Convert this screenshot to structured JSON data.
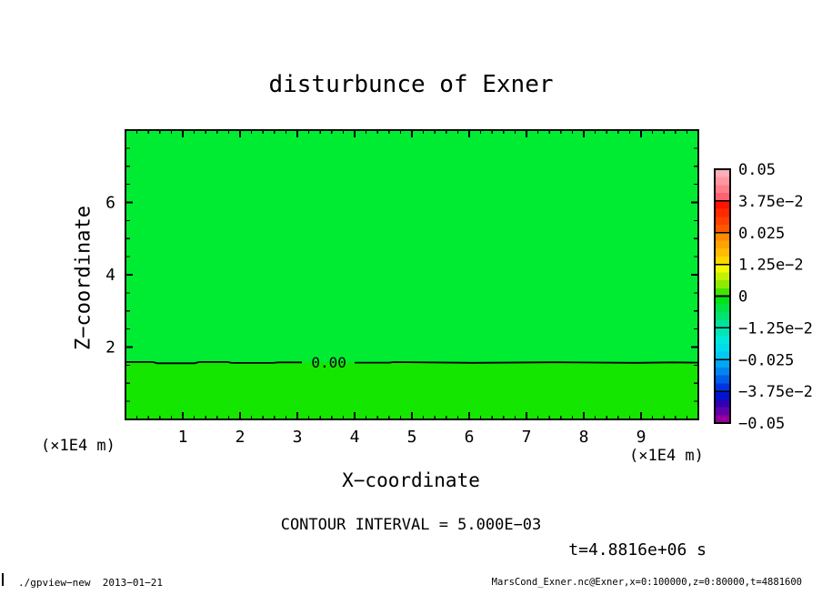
{
  "title": "disturbunce of Exner",
  "chart_data": {
    "type": "heatmap",
    "title": "disturbunce of Exner",
    "xlabel": "X−coordinate",
    "ylabel": "Z−coordinate",
    "x_units_label": "(×1E4 m)",
    "y_units_label": "(×1E4 m)",
    "xlim": [
      0,
      10
    ],
    "ylim": [
      0,
      8
    ],
    "x_major_ticks": [
      1,
      2,
      3,
      4,
      5,
      6,
      7,
      8,
      9
    ],
    "x_minor_step": 0.2,
    "y_major_ticks": [
      2,
      4,
      6
    ],
    "y_minor_step": 0.5,
    "grid": false,
    "field": {
      "description": "near-zero Exner disturbance field; single zero contour line splits domain horizontally",
      "above_contour_fill": "#00ec33",
      "below_contour_fill": "#14e600"
    },
    "contours": [
      {
        "level": 0.0,
        "label": "0.00",
        "z_coordinate": 1.57,
        "label_x_position": 3.55
      }
    ],
    "contour_interval": 0.005,
    "contour_interval_label": "CONTOUR INTERVAL = 5.000E−03",
    "time_label": "t=4.8816e+06 s",
    "colorbar": {
      "position": "right",
      "tick_labels": [
        "0.05",
        "3.75e−2",
        "0.025",
        "1.25e−2",
        "0",
        "−1.25e−2",
        "−0.025",
        "−3.75e−2",
        "−0.05"
      ],
      "tick_values": [
        0.05,
        0.0375,
        0.025,
        0.0125,
        0,
        -0.0125,
        -0.025,
        -0.0375,
        -0.05
      ],
      "segment_colors_top_to_bottom": [
        "#ffadb6",
        "#ff97a1",
        "#ff7e8a",
        "#ff6272",
        "#ff1400",
        "#ff2a00",
        "#ff4000",
        "#ff5600",
        "#ff8a00",
        "#ffa300",
        "#ffbc00",
        "#ffd600",
        "#f2fa00",
        "#c3f200",
        "#8ceb00",
        "#46e300",
        "#00e318",
        "#00e344",
        "#00e370",
        "#00e39c",
        "#00e4b8",
        "#00e8da",
        "#00dcec",
        "#00c9f2",
        "#00a5f6",
        "#0086f0",
        "#005cea",
        "#0034e0",
        "#0014cf",
        "#2e00b6",
        "#6100a7",
        "#93009c"
      ]
    }
  },
  "footer": {
    "left": "./gpview−new  2013−01−21",
    "right": "MarsCond_Exner.nc@Exner,x=0:100000,z=0:80000,t=4881600"
  }
}
